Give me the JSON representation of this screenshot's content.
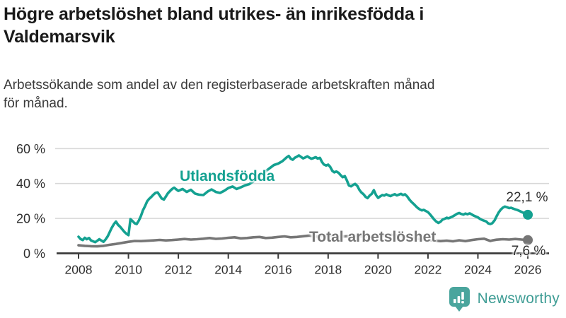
{
  "title_lines": [
    "Högre arbetslöshet bland utrikes- än inrikesfödda i",
    "Valdemarsvik"
  ],
  "subtitle_lines": [
    "Arbetssökande som andel av den registerbaserade arbetskraften månad",
    "för månad."
  ],
  "footer": {
    "brand": "Newsworthy"
  },
  "colors": {
    "foreign_line": "#14a191",
    "total_line": "#767676",
    "grid": "#d8d8d8",
    "axis": "#3c3c3c",
    "tick_text": "#2e2e2e",
    "brand": "#4aa59d"
  },
  "chart_data": {
    "type": "line",
    "x_ticks": [
      2008,
      2010,
      2012,
      2014,
      2016,
      2018,
      2020,
      2022,
      2024,
      2026
    ],
    "y_ticks": [
      {
        "value": 0,
        "label": "0 %"
      },
      {
        "value": 20,
        "label": "20 %"
      },
      {
        "value": 40,
        "label": "40 %"
      },
      {
        "value": 60,
        "label": "60 %"
      }
    ],
    "x_range": [
      2008,
      2026
    ],
    "y_range": [
      0,
      62
    ],
    "grid": true,
    "series": [
      {
        "id": "utlandsfodda",
        "name": "Utlandsfödda",
        "color": "#14a191",
        "end_label": "22,1 %",
        "end_value": 22.1,
        "points": [
          [
            2008.0,
            9.5
          ],
          [
            2008.08,
            8.2
          ],
          [
            2008.17,
            7.6
          ],
          [
            2008.25,
            8.9
          ],
          [
            2008.33,
            8.1
          ],
          [
            2008.42,
            8.8
          ],
          [
            2008.5,
            7.4
          ],
          [
            2008.58,
            6.9
          ],
          [
            2008.67,
            6.4
          ],
          [
            2008.75,
            7.2
          ],
          [
            2008.83,
            8.1
          ],
          [
            2008.92,
            7.3
          ],
          [
            2009.0,
            6.6
          ],
          [
            2009.08,
            7.9
          ],
          [
            2009.17,
            9.8
          ],
          [
            2009.25,
            12.2
          ],
          [
            2009.33,
            14.6
          ],
          [
            2009.42,
            16.8
          ],
          [
            2009.5,
            18.2
          ],
          [
            2009.58,
            16.4
          ],
          [
            2009.67,
            15.2
          ],
          [
            2009.75,
            13.8
          ],
          [
            2009.83,
            12.4
          ],
          [
            2009.92,
            11.2
          ],
          [
            2010.0,
            10.4
          ],
          [
            2010.08,
            19.6
          ],
          [
            2010.17,
            18.4
          ],
          [
            2010.25,
            17.2
          ],
          [
            2010.33,
            16.8
          ],
          [
            2010.42,
            18.9
          ],
          [
            2010.5,
            21.4
          ],
          [
            2010.58,
            24.6
          ],
          [
            2010.67,
            27.2
          ],
          [
            2010.75,
            29.8
          ],
          [
            2010.83,
            31.2
          ],
          [
            2010.92,
            32.4
          ],
          [
            2011.0,
            33.6
          ],
          [
            2011.08,
            34.6
          ],
          [
            2011.17,
            34.9
          ],
          [
            2011.25,
            33.2
          ],
          [
            2011.33,
            31.4
          ],
          [
            2011.42,
            30.8
          ],
          [
            2011.5,
            32.6
          ],
          [
            2011.58,
            34.4
          ],
          [
            2011.67,
            35.8
          ],
          [
            2011.75,
            36.9
          ],
          [
            2011.83,
            37.6
          ],
          [
            2011.92,
            36.6
          ],
          [
            2012.0,
            35.8
          ],
          [
            2012.17,
            36.9
          ],
          [
            2012.33,
            35.2
          ],
          [
            2012.5,
            36.4
          ],
          [
            2012.67,
            34.2
          ],
          [
            2012.83,
            33.6
          ],
          [
            2013.0,
            33.4
          ],
          [
            2013.17,
            35.4
          ],
          [
            2013.33,
            36.6
          ],
          [
            2013.5,
            35.2
          ],
          [
            2013.67,
            34.6
          ],
          [
            2013.83,
            35.8
          ],
          [
            2014.0,
            37.4
          ],
          [
            2014.17,
            38.3
          ],
          [
            2014.33,
            36.9
          ],
          [
            2014.5,
            37.8
          ],
          [
            2014.67,
            38.9
          ],
          [
            2014.83,
            39.6
          ],
          [
            2015.0,
            41.2
          ],
          [
            2015.17,
            43.1
          ],
          [
            2015.33,
            45.2
          ],
          [
            2015.5,
            47.1
          ],
          [
            2015.67,
            48.9
          ],
          [
            2015.83,
            50.6
          ],
          [
            2016.0,
            51.4
          ],
          [
            2016.17,
            52.8
          ],
          [
            2016.33,
            54.9
          ],
          [
            2016.42,
            55.8
          ],
          [
            2016.5,
            54.2
          ],
          [
            2016.58,
            53.6
          ],
          [
            2016.67,
            54.8
          ],
          [
            2016.75,
            55.4
          ],
          [
            2016.83,
            56.1
          ],
          [
            2016.92,
            55.2
          ],
          [
            2017.0,
            54.4
          ],
          [
            2017.08,
            54.9
          ],
          [
            2017.17,
            55.6
          ],
          [
            2017.25,
            54.8
          ],
          [
            2017.33,
            54.2
          ],
          [
            2017.42,
            54.6
          ],
          [
            2017.5,
            55.1
          ],
          [
            2017.58,
            54.3
          ],
          [
            2017.67,
            54.7
          ],
          [
            2017.75,
            52.4
          ],
          [
            2017.83,
            50.9
          ],
          [
            2017.92,
            50.3
          ],
          [
            2018.0,
            50.8
          ],
          [
            2018.08,
            49.6
          ],
          [
            2018.17,
            47.2
          ],
          [
            2018.25,
            46.4
          ],
          [
            2018.33,
            46.9
          ],
          [
            2018.42,
            46.1
          ],
          [
            2018.5,
            44.8
          ],
          [
            2018.58,
            43.6
          ],
          [
            2018.67,
            44.2
          ],
          [
            2018.75,
            41.8
          ],
          [
            2018.83,
            38.9
          ],
          [
            2018.92,
            38.4
          ],
          [
            2019.0,
            39.2
          ],
          [
            2019.08,
            39.8
          ],
          [
            2019.17,
            38.6
          ],
          [
            2019.25,
            36.4
          ],
          [
            2019.33,
            34.9
          ],
          [
            2019.42,
            33.8
          ],
          [
            2019.5,
            32.4
          ],
          [
            2019.58,
            31.6
          ],
          [
            2019.67,
            33.2
          ],
          [
            2019.75,
            34.1
          ],
          [
            2019.83,
            36.2
          ],
          [
            2019.92,
            33.4
          ],
          [
            2020.0,
            31.8
          ],
          [
            2020.08,
            32.6
          ],
          [
            2020.17,
            33.4
          ],
          [
            2020.25,
            33.1
          ],
          [
            2020.33,
            33.8
          ],
          [
            2020.42,
            33.2
          ],
          [
            2020.5,
            32.8
          ],
          [
            2020.58,
            33.4
          ],
          [
            2020.67,
            33.9
          ],
          [
            2020.75,
            33.2
          ],
          [
            2020.83,
            33.6
          ],
          [
            2020.92,
            34.1
          ],
          [
            2021.0,
            33.4
          ],
          [
            2021.08,
            33.8
          ],
          [
            2021.17,
            32.6
          ],
          [
            2021.25,
            30.9
          ],
          [
            2021.33,
            29.6
          ],
          [
            2021.42,
            28.4
          ],
          [
            2021.5,
            27.2
          ],
          [
            2021.58,
            26.1
          ],
          [
            2021.67,
            25.2
          ],
          [
            2021.75,
            24.6
          ],
          [
            2021.83,
            24.9
          ],
          [
            2021.92,
            24.2
          ],
          [
            2022.0,
            23.6
          ],
          [
            2022.08,
            22.4
          ],
          [
            2022.17,
            20.8
          ],
          [
            2022.25,
            19.4
          ],
          [
            2022.33,
            18.2
          ],
          [
            2022.42,
            17.4
          ],
          [
            2022.5,
            18.1
          ],
          [
            2022.58,
            19.3
          ],
          [
            2022.67,
            19.8
          ],
          [
            2022.75,
            20.4
          ],
          [
            2022.83,
            20.1
          ],
          [
            2022.92,
            20.7
          ],
          [
            2023.0,
            21.2
          ],
          [
            2023.08,
            21.9
          ],
          [
            2023.17,
            22.7
          ],
          [
            2023.25,
            23.1
          ],
          [
            2023.33,
            22.6
          ],
          [
            2023.42,
            22.2
          ],
          [
            2023.5,
            22.8
          ],
          [
            2023.58,
            22.4
          ],
          [
            2023.67,
            22.9
          ],
          [
            2023.75,
            22.3
          ],
          [
            2023.83,
            21.6
          ],
          [
            2023.92,
            21.1
          ],
          [
            2024.0,
            20.6
          ],
          [
            2024.08,
            19.8
          ],
          [
            2024.17,
            19.1
          ],
          [
            2024.25,
            18.7
          ],
          [
            2024.33,
            18.3
          ],
          [
            2024.42,
            17.1
          ],
          [
            2024.5,
            16.8
          ],
          [
            2024.58,
            17.3
          ],
          [
            2024.67,
            18.9
          ],
          [
            2024.75,
            21.2
          ],
          [
            2024.83,
            23.4
          ],
          [
            2024.92,
            25.1
          ],
          [
            2025.0,
            26.2
          ],
          [
            2025.08,
            26.8
          ],
          [
            2025.17,
            26.4
          ],
          [
            2025.25,
            25.9
          ],
          [
            2025.33,
            26.1
          ],
          [
            2025.42,
            25.6
          ],
          [
            2025.5,
            25.2
          ],
          [
            2025.58,
            24.8
          ],
          [
            2025.67,
            24.3
          ],
          [
            2025.75,
            23.7
          ],
          [
            2025.83,
            23.2
          ],
          [
            2025.92,
            22.6
          ],
          [
            2026.0,
            22.1
          ]
        ]
      },
      {
        "id": "total",
        "name": "Total arbetslöshet",
        "color": "#767676",
        "end_label": "7,6 %",
        "end_value": 7.6,
        "points": [
          [
            2008.0,
            4.6
          ],
          [
            2008.25,
            4.3
          ],
          [
            2008.5,
            4.1
          ],
          [
            2008.75,
            4.0
          ],
          [
            2009.0,
            4.3
          ],
          [
            2009.25,
            4.9
          ],
          [
            2009.5,
            5.4
          ],
          [
            2009.75,
            6.0
          ],
          [
            2010.0,
            6.6
          ],
          [
            2010.25,
            7.1
          ],
          [
            2010.5,
            7.0
          ],
          [
            2010.75,
            7.2
          ],
          [
            2011.0,
            7.4
          ],
          [
            2011.25,
            7.7
          ],
          [
            2011.5,
            7.4
          ],
          [
            2011.75,
            7.6
          ],
          [
            2012.0,
            7.9
          ],
          [
            2012.25,
            8.2
          ],
          [
            2012.5,
            7.9
          ],
          [
            2012.75,
            8.1
          ],
          [
            2013.0,
            8.4
          ],
          [
            2013.25,
            8.8
          ],
          [
            2013.5,
            8.3
          ],
          [
            2013.75,
            8.5
          ],
          [
            2014.0,
            8.9
          ],
          [
            2014.25,
            9.2
          ],
          [
            2014.5,
            8.6
          ],
          [
            2014.75,
            8.8
          ],
          [
            2015.0,
            9.2
          ],
          [
            2015.25,
            9.4
          ],
          [
            2015.5,
            8.8
          ],
          [
            2015.75,
            9.0
          ],
          [
            2016.0,
            9.4
          ],
          [
            2016.25,
            9.7
          ],
          [
            2016.5,
            9.2
          ],
          [
            2016.75,
            9.4
          ],
          [
            2017.0,
            9.8
          ],
          [
            2017.25,
            10.2
          ],
          [
            2017.5,
            9.6
          ],
          [
            2017.75,
            9.8
          ],
          [
            2018.0,
            10.0
          ],
          [
            2018.25,
            10.2
          ],
          [
            2018.5,
            9.6
          ],
          [
            2018.75,
            9.8
          ],
          [
            2019.0,
            9.6
          ],
          [
            2019.25,
            9.9
          ],
          [
            2019.5,
            9.3
          ],
          [
            2019.75,
            9.5
          ],
          [
            2020.0,
            9.8
          ],
          [
            2020.25,
            10.4
          ],
          [
            2020.5,
            10.6
          ],
          [
            2020.75,
            10.2
          ],
          [
            2021.0,
            9.8
          ],
          [
            2021.25,
            9.3
          ],
          [
            2021.5,
            8.7
          ],
          [
            2021.75,
            8.1
          ],
          [
            2022.0,
            7.7
          ],
          [
            2022.25,
            7.3
          ],
          [
            2022.5,
            7.0
          ],
          [
            2022.75,
            7.3
          ],
          [
            2023.0,
            6.9
          ],
          [
            2023.25,
            7.5
          ],
          [
            2023.5,
            7.0
          ],
          [
            2023.75,
            7.6
          ],
          [
            2024.0,
            8.1
          ],
          [
            2024.25,
            8.4
          ],
          [
            2024.5,
            7.1
          ],
          [
            2024.58,
            7.4
          ],
          [
            2024.75,
            7.8
          ],
          [
            2025.0,
            8.1
          ],
          [
            2025.25,
            7.9
          ],
          [
            2025.5,
            8.2
          ],
          [
            2025.75,
            7.9
          ],
          [
            2026.0,
            7.6
          ]
        ]
      }
    ]
  }
}
